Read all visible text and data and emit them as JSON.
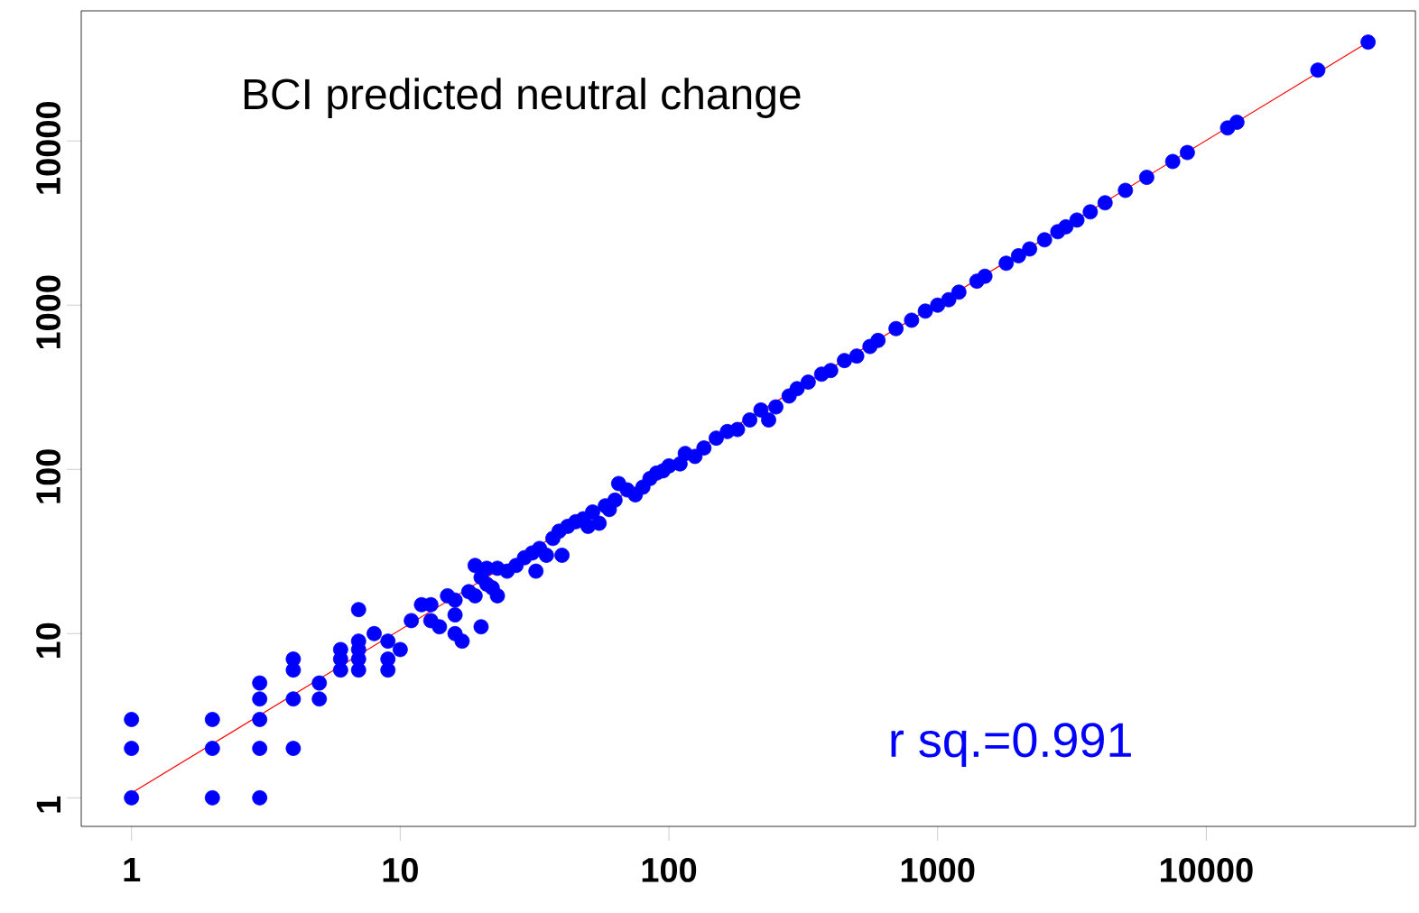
{
  "chart_data": {
    "type": "scatter",
    "title": "BCI predicted neutral change",
    "annotations": [
      "r sq.=0.991"
    ],
    "log": "xy",
    "grid": false,
    "xlim": [
      0.65,
      60000
    ],
    "ylim": [
      0.67,
      62000
    ],
    "xticks": [
      1,
      10,
      100,
      1000,
      10000
    ],
    "yticks": [
      1,
      10,
      100,
      1000,
      10000
    ],
    "series": [
      {
        "marker": "circle",
        "color": "#0000ff",
        "x": [
          1,
          1,
          1,
          2,
          2,
          2,
          3,
          3,
          3,
          3,
          3,
          4,
          4,
          4,
          4,
          5,
          5,
          6,
          6,
          6,
          7,
          7,
          7,
          7,
          7,
          8,
          9,
          9,
          9,
          10,
          11,
          12,
          13,
          13,
          14,
          15,
          16,
          16,
          16,
          17,
          18,
          19,
          19,
          20,
          20,
          21,
          21,
          22,
          23,
          23,
          25,
          27,
          29,
          31,
          32,
          33,
          35,
          37,
          39,
          40,
          42,
          45,
          48,
          50,
          52,
          55,
          58,
          60,
          63,
          65,
          70,
          75,
          80,
          85,
          90,
          95,
          100,
          110,
          115,
          125,
          135,
          150,
          165,
          180,
          200,
          220,
          235,
          250,
          280,
          300,
          330,
          370,
          400,
          450,
          500,
          560,
          600,
          700,
          800,
          900,
          1000,
          1100,
          1200,
          1400,
          1500,
          1800,
          2000,
          2200,
          2500,
          2800,
          3000,
          3300,
          3700,
          4200,
          5000,
          6000,
          7500,
          8500,
          12000,
          13000,
          26000,
          40000
        ],
        "values": [
          1,
          2,
          3,
          1,
          2,
          3,
          1,
          2,
          3,
          4,
          5,
          2,
          4,
          6,
          7,
          4,
          5,
          6,
          7,
          8,
          6,
          7,
          8,
          9,
          14,
          10,
          6,
          7,
          9,
          8,
          12,
          15,
          12,
          15,
          11,
          17,
          10,
          13,
          16,
          9,
          18,
          26,
          17,
          11,
          22,
          25,
          20,
          19,
          17,
          25,
          24,
          26,
          29,
          31,
          24,
          33,
          30,
          38,
          42,
          30,
          45,
          48,
          50,
          45,
          55,
          47,
          60,
          57,
          65,
          82,
          75,
          70,
          78,
          88,
          95,
          98,
          105,
          108,
          125,
          120,
          135,
          155,
          170,
          175,
          200,
          230,
          200,
          240,
          280,
          310,
          340,
          380,
          400,
          460,
          490,
          560,
          610,
          720,
          810,
          920,
          1000,
          1080,
          1200,
          1400,
          1500,
          1800,
          2000,
          2200,
          2500,
          2800,
          3000,
          3300,
          3700,
          4200,
          5000,
          6000,
          7500,
          8500,
          12000,
          13000,
          27000,
          40000
        ]
      },
      {
        "type": "line",
        "marker": "none",
        "color": "#ff0000",
        "x": [
          1,
          40000
        ],
        "values": [
          1.07,
          40000
        ]
      }
    ]
  }
}
